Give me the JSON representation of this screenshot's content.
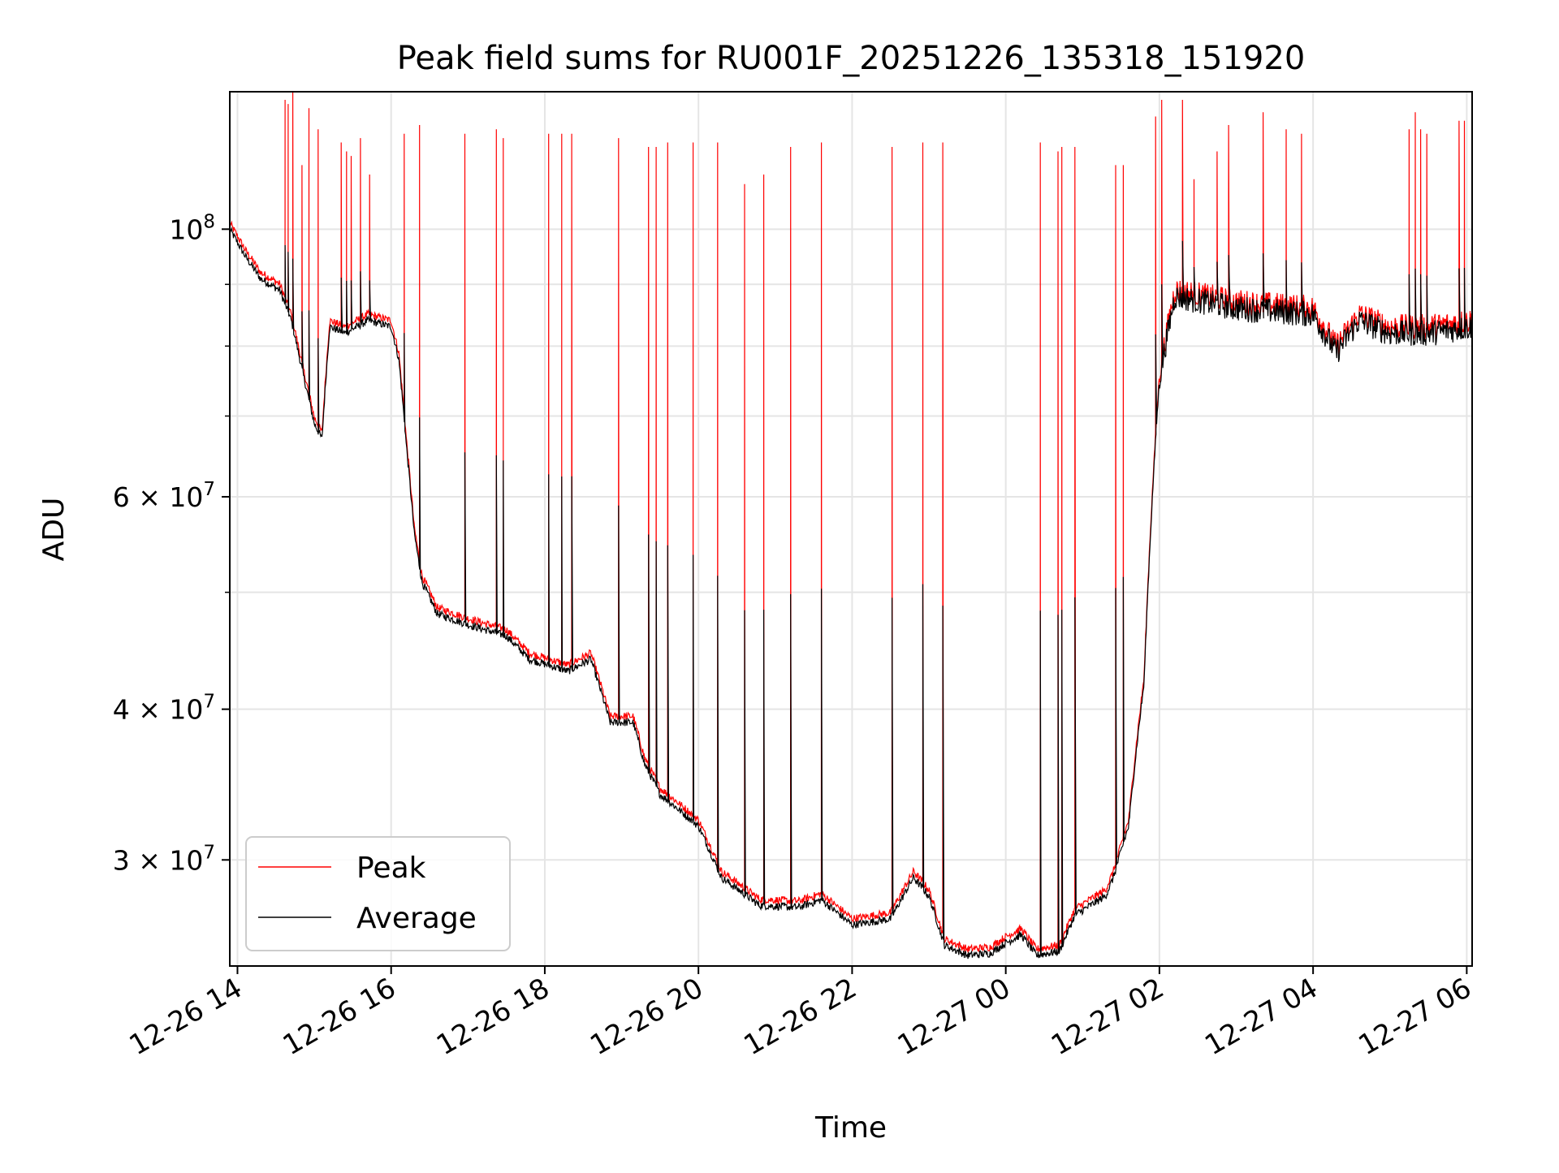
{
  "chart_data": {
    "type": "line",
    "title": "Peak field sums for RU001F_20251226_135318_151920",
    "xlabel": "Time",
    "ylabel": "ADU",
    "yscale": "log",
    "grid": true,
    "xlim_hours": [
      -0.1,
      16.07
    ],
    "ylim": [
      24500000,
      130000000
    ],
    "x_ticks": [
      {
        "label": "12-26 14",
        "hours": 0
      },
      {
        "label": "12-26 16",
        "hours": 2
      },
      {
        "label": "12-26 18",
        "hours": 4
      },
      {
        "label": "12-26 20",
        "hours": 6
      },
      {
        "label": "12-26 22",
        "hours": 8
      },
      {
        "label": "12-27 00",
        "hours": 10
      },
      {
        "label": "12-27 02",
        "hours": 12
      },
      {
        "label": "12-27 04",
        "hours": 14
      },
      {
        "label": "12-27 06",
        "hours": 16
      }
    ],
    "y_major_ticks": [
      {
        "label": "10",
        "sup": "8",
        "value": 100000000
      },
      {
        "label": "6 × 10",
        "sup": "7",
        "value": 60000000
      },
      {
        "label": "4 × 10",
        "sup": "7",
        "value": 40000000
      },
      {
        "label": "3 × 10",
        "sup": "7",
        "value": 30000000
      }
    ],
    "y_minor_gridlines": [
      90000000,
      80000000,
      70000000,
      50000000
    ],
    "legend": {
      "position": "lower-left",
      "entries": [
        "Peak",
        "Average"
      ]
    },
    "series": [
      {
        "name": "Average",
        "color": "#000000",
        "baseline": [
          [
            -0.1,
            100000000
          ],
          [
            0.1,
            95000000
          ],
          [
            0.3,
            91000000
          ],
          [
            0.55,
            89000000
          ],
          [
            0.7,
            84000000
          ],
          [
            0.85,
            76000000
          ],
          [
            1.0,
            69000000
          ],
          [
            1.1,
            67000000
          ],
          [
            1.2,
            83000000
          ],
          [
            1.4,
            82000000
          ],
          [
            1.7,
            84000000
          ],
          [
            2.0,
            83000000
          ],
          [
            2.1,
            78000000
          ],
          [
            2.2,
            66000000
          ],
          [
            2.3,
            56000000
          ],
          [
            2.4,
            51000000
          ],
          [
            2.6,
            48000000
          ],
          [
            3.0,
            47000000
          ],
          [
            3.5,
            46000000
          ],
          [
            3.8,
            44000000
          ],
          [
            4.3,
            43000000
          ],
          [
            4.6,
            44000000
          ],
          [
            4.7,
            42000000
          ],
          [
            4.85,
            39000000
          ],
          [
            5.15,
            39000000
          ],
          [
            5.3,
            36000000
          ],
          [
            5.5,
            34000000
          ],
          [
            6.0,
            32000000
          ],
          [
            6.3,
            29000000
          ],
          [
            6.8,
            27500000
          ],
          [
            7.3,
            27400000
          ],
          [
            7.6,
            27800000
          ],
          [
            8.0,
            26500000
          ],
          [
            8.5,
            26800000
          ],
          [
            8.8,
            29000000
          ],
          [
            9.0,
            28000000
          ],
          [
            9.2,
            25500000
          ],
          [
            9.5,
            25000000
          ],
          [
            9.8,
            25100000
          ],
          [
            10.0,
            25600000
          ],
          [
            10.2,
            26000000
          ],
          [
            10.4,
            25000000
          ],
          [
            10.7,
            25200000
          ],
          [
            10.9,
            27000000
          ],
          [
            11.3,
            28000000
          ],
          [
            11.4,
            29000000
          ],
          [
            11.6,
            32000000
          ],
          [
            11.8,
            42000000
          ],
          [
            12.0,
            75000000
          ],
          [
            12.2,
            88000000
          ],
          [
            13.0,
            86000000
          ],
          [
            14.0,
            85000000
          ],
          [
            14.3,
            79000000
          ],
          [
            14.6,
            84000000
          ],
          [
            15.0,
            82000000
          ],
          [
            15.5,
            82000000
          ],
          [
            16.07,
            83000000
          ]
        ]
      },
      {
        "name": "Peak",
        "color": "#ff0000",
        "baseline_offset_ratio": 1.012,
        "spikes": [
          [
            0.62,
            128000000
          ],
          [
            0.66,
            127000000
          ],
          [
            0.72,
            130000000
          ],
          [
            0.84,
            113000000
          ],
          [
            0.93,
            126000000
          ],
          [
            1.05,
            121000000
          ],
          [
            1.35,
            118000000
          ],
          [
            1.42,
            116000000
          ],
          [
            1.48,
            115000000
          ],
          [
            1.6,
            119000000
          ],
          [
            1.72,
            111000000
          ],
          [
            2.17,
            120000000
          ],
          [
            2.37,
            122000000
          ],
          [
            2.96,
            120000000
          ],
          [
            3.37,
            121000000
          ],
          [
            3.46,
            119000000
          ],
          [
            4.05,
            120000000
          ],
          [
            4.22,
            120000000
          ],
          [
            4.35,
            120000000
          ],
          [
            4.96,
            119000000
          ],
          [
            5.35,
            117000000
          ],
          [
            5.45,
            117000000
          ],
          [
            5.6,
            118000000
          ],
          [
            5.93,
            118000000
          ],
          [
            6.25,
            118000000
          ],
          [
            6.6,
            109000000
          ],
          [
            6.85,
            111000000
          ],
          [
            7.2,
            117000000
          ],
          [
            7.6,
            118000000
          ],
          [
            8.52,
            117000000
          ],
          [
            8.92,
            118000000
          ],
          [
            9.18,
            118000000
          ],
          [
            10.45,
            118000000
          ],
          [
            10.68,
            116000000
          ],
          [
            10.73,
            117000000
          ],
          [
            10.9,
            117000000
          ],
          [
            11.43,
            113000000
          ],
          [
            11.53,
            113000000
          ],
          [
            11.95,
            124000000
          ],
          [
            12.03,
            128000000
          ],
          [
            12.3,
            128000000
          ],
          [
            12.45,
            110000000
          ],
          [
            12.75,
            116000000
          ],
          [
            12.9,
            122000000
          ],
          [
            13.35,
            125000000
          ],
          [
            13.65,
            121000000
          ],
          [
            13.85,
            120000000
          ],
          [
            15.25,
            121000000
          ],
          [
            15.33,
            125000000
          ],
          [
            15.4,
            121000000
          ],
          [
            15.48,
            120000000
          ],
          [
            15.9,
            123000000
          ],
          [
            15.97,
            123000000
          ]
        ]
      }
    ]
  }
}
